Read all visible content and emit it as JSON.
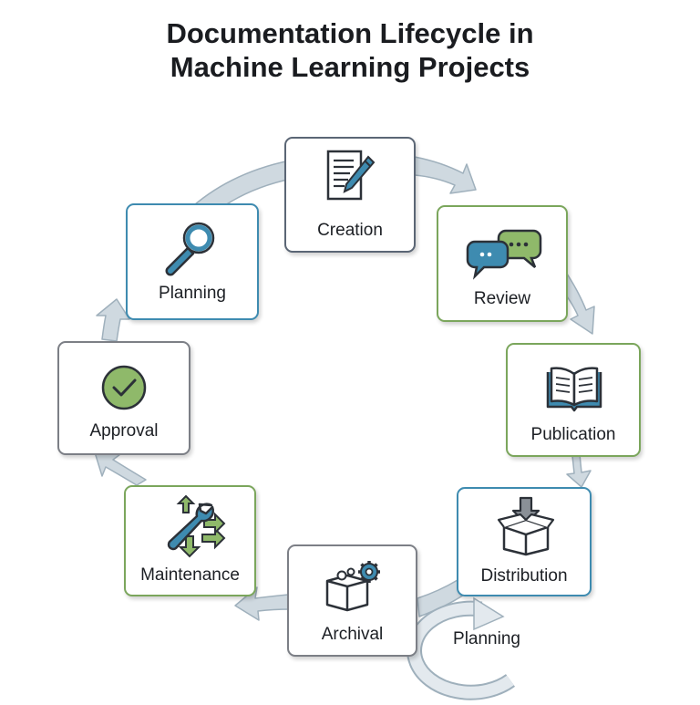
{
  "title": {
    "line1": "Documentation Lifecycle in",
    "line2": "Machine Learning Projects"
  },
  "stages": [
    {
      "label": "Creation",
      "icon": "document-pen-icon"
    },
    {
      "label": "Review",
      "icon": "chat-bubbles-icon"
    },
    {
      "label": "Publication",
      "icon": "open-book-icon"
    },
    {
      "label": "Distribution",
      "icon": "box-download-icon"
    },
    {
      "label": "Archival",
      "icon": "archive-box-gear-icon"
    },
    {
      "label": "Maintenance",
      "icon": "wrench-arrows-icon"
    },
    {
      "label": "Approval",
      "icon": "checkmark-circle-icon"
    },
    {
      "label": "Planning",
      "icon": "magnifier-icon"
    }
  ],
  "loop": {
    "label": "Planning",
    "icon": "cycle-arrow-icon"
  },
  "colors": {
    "arrow_fill": "#cfd9e0",
    "arrow_stroke": "#9fb0bc",
    "blue": "#3e8bb0",
    "green": "#7ba65c",
    "slate": "#5b6675"
  }
}
